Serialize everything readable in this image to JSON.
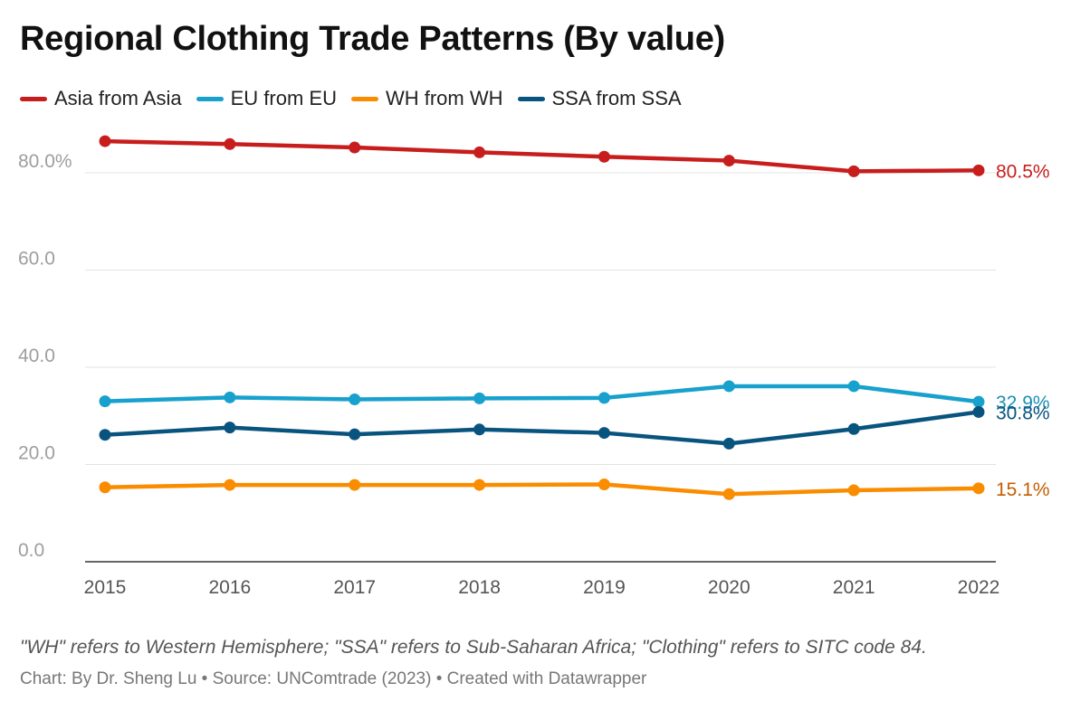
{
  "title": "Regional Clothing Trade Patterns (By value)",
  "footnote": "\"WH\" refers to Western Hemisphere; \"SSA\" refers to Sub-Saharan Africa; \"Clothing\" refers to SITC code 84.",
  "credit": "Chart: By Dr. Sheng Lu • Source: UNComtrade (2023) • Created with Datawrapper",
  "chart_data": {
    "type": "line",
    "x": [
      "2015",
      "2016",
      "2017",
      "2018",
      "2019",
      "2020",
      "2021",
      "2022"
    ],
    "ylim": [
      0,
      90
    ],
    "yticks": [
      0,
      20,
      40,
      60,
      80
    ],
    "ytick_labels": [
      "0.0",
      "20.0",
      "40.0",
      "60.0",
      "80.0%"
    ],
    "grid": true,
    "legend_position": "top-left",
    "series": [
      {
        "name": "Asia from Asia",
        "color": "#c71e1d",
        "values": [
          86.5,
          85.9,
          85.2,
          84.2,
          83.3,
          82.5,
          80.3,
          80.5
        ],
        "end_label": "80.5%"
      },
      {
        "name": "EU from EU",
        "color": "#18a1cd",
        "values": [
          33.0,
          33.8,
          33.4,
          33.6,
          33.7,
          36.1,
          36.1,
          32.9
        ],
        "end_label": "32.9%"
      },
      {
        "name": "WH from WH",
        "color": "#fa8c00",
        "values": [
          15.3,
          15.8,
          15.8,
          15.8,
          15.9,
          13.9,
          14.7,
          15.1
        ],
        "end_label": "15.1%"
      },
      {
        "name": "SSA from SSA",
        "color": "#09547e",
        "values": [
          26.1,
          27.6,
          26.2,
          27.2,
          26.5,
          24.3,
          27.3,
          30.8
        ],
        "end_label": "30.8%"
      }
    ],
    "end_label_colors": [
      "#c71e1d",
      "#1a8fb5",
      "#c45e00",
      "#09547e"
    ]
  }
}
